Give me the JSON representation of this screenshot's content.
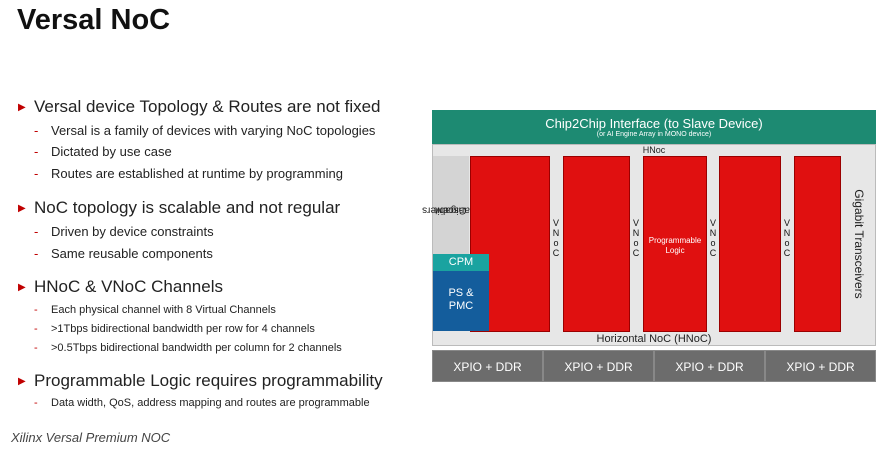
{
  "title": "Versal NoC",
  "bullets": [
    {
      "text": "Versal device Topology & Routes are not fixed",
      "subs": [
        "Versal is a family of devices with varying NoC topologies",
        "Dictated by use case",
        "Routes are established at runtime by programming"
      ]
    },
    {
      "text": "NoC topology is scalable and not regular",
      "subs": [
        "Driven by device constraints",
        "Same reusable components"
      ]
    },
    {
      "text": "HNoC & VNoC Channels",
      "subs": [
        "Each physical channel with 8 Virtual Channels",
        ">1Tbps bidirectional bandwidth per row for 4 channels",
        ">0.5Tbps bidirectional bandwidth per column for 2 channels"
      ]
    },
    {
      "text": "Programmable Logic requires programmability",
      "subs": [
        "Data width, QoS, address mapping and routes are programmable"
      ]
    }
  ],
  "caption": "Xilinx Versal Premium NOC",
  "diagram": {
    "chip2chip": "Chip2Chip Interface (to Slave Device)",
    "chip2chip_sub": "(or AI Engine Array in MONO device)",
    "hnoc_top": "HNoc",
    "hnoc_bottom": "Horizontal NoC (HNoC)",
    "gt_left_line1": "Gigabit",
    "gt_left_line2": "Transceivers",
    "gt_right": "Gigabit Transceivers",
    "cpm": "CPM",
    "ps_line1": "PS &",
    "ps_line2": "PMC",
    "vnoc": [
      "V",
      "N",
      "o",
      "C"
    ],
    "pl_line1": "Programmable",
    "pl_line2": "Logic",
    "xpio": [
      "XPIO + DDR",
      "XPIO + DDR",
      "XPIO + DDR",
      "XPIO + DDR"
    ],
    "colors": {
      "green": "#1d8a72",
      "red": "#e01010",
      "teal": "#1aa3a0",
      "blue": "#145d9c",
      "gray": "#6c6c6c"
    }
  }
}
